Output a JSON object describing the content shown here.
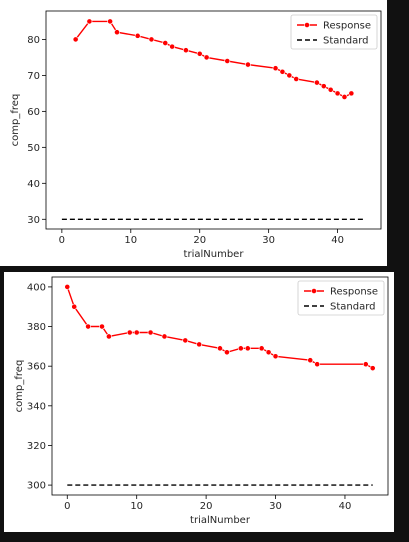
{
  "chart_data": [
    {
      "type": "line",
      "xlabel": "trialNumber",
      "ylabel": "comp_freq",
      "xlim": [
        -2.3,
        46.3
      ],
      "ylim": [
        27.3,
        87.9
      ],
      "xticks": [
        0,
        10,
        20,
        30,
        40
      ],
      "yticks": [
        30,
        40,
        50,
        60,
        70,
        80
      ],
      "grid": false,
      "legend_position": "top-right",
      "series": [
        {
          "name": "Response",
          "color": "#ff0000",
          "style": "solid-with-markers",
          "x": [
            2,
            4,
            7,
            8,
            11,
            13,
            15,
            16,
            18,
            20,
            21,
            24,
            27,
            31,
            32,
            33,
            34,
            37,
            38,
            39,
            40,
            41,
            42
          ],
          "y": [
            80,
            85,
            85,
            82,
            81,
            80,
            79,
            78,
            77,
            76,
            75,
            74,
            73,
            72,
            71,
            70,
            69,
            68,
            67,
            66,
            65,
            64,
            65
          ]
        },
        {
          "name": "Standard",
          "color": "#000000",
          "style": "dashed",
          "x": [
            0,
            44
          ],
          "y": [
            30,
            30
          ]
        }
      ]
    },
    {
      "type": "line",
      "xlabel": "trialNumber",
      "ylabel": "comp_freq",
      "xlim": [
        -2.2,
        46.2
      ],
      "ylim": [
        295,
        405
      ],
      "xticks": [
        0,
        10,
        20,
        30,
        40
      ],
      "yticks": [
        300,
        320,
        340,
        360,
        380,
        400
      ],
      "grid": false,
      "legend_position": "top-right",
      "series": [
        {
          "name": "Response",
          "color": "#ff0000",
          "style": "solid-with-markers",
          "x": [
            0,
            1,
            3,
            5,
            6,
            9,
            10,
            12,
            14,
            17,
            19,
            22,
            23,
            25,
            26,
            28,
            29,
            30,
            35,
            36,
            43,
            44
          ],
          "y": [
            400,
            390,
            380,
            380,
            375,
            377,
            377,
            377,
            375,
            373,
            371,
            369,
            367,
            369,
            369,
            369,
            367,
            365,
            363,
            361,
            361,
            359
          ]
        },
        {
          "name": "Standard",
          "color": "#000000",
          "style": "dashed",
          "x": [
            0,
            44
          ],
          "y": [
            300,
            300
          ]
        }
      ]
    }
  ]
}
